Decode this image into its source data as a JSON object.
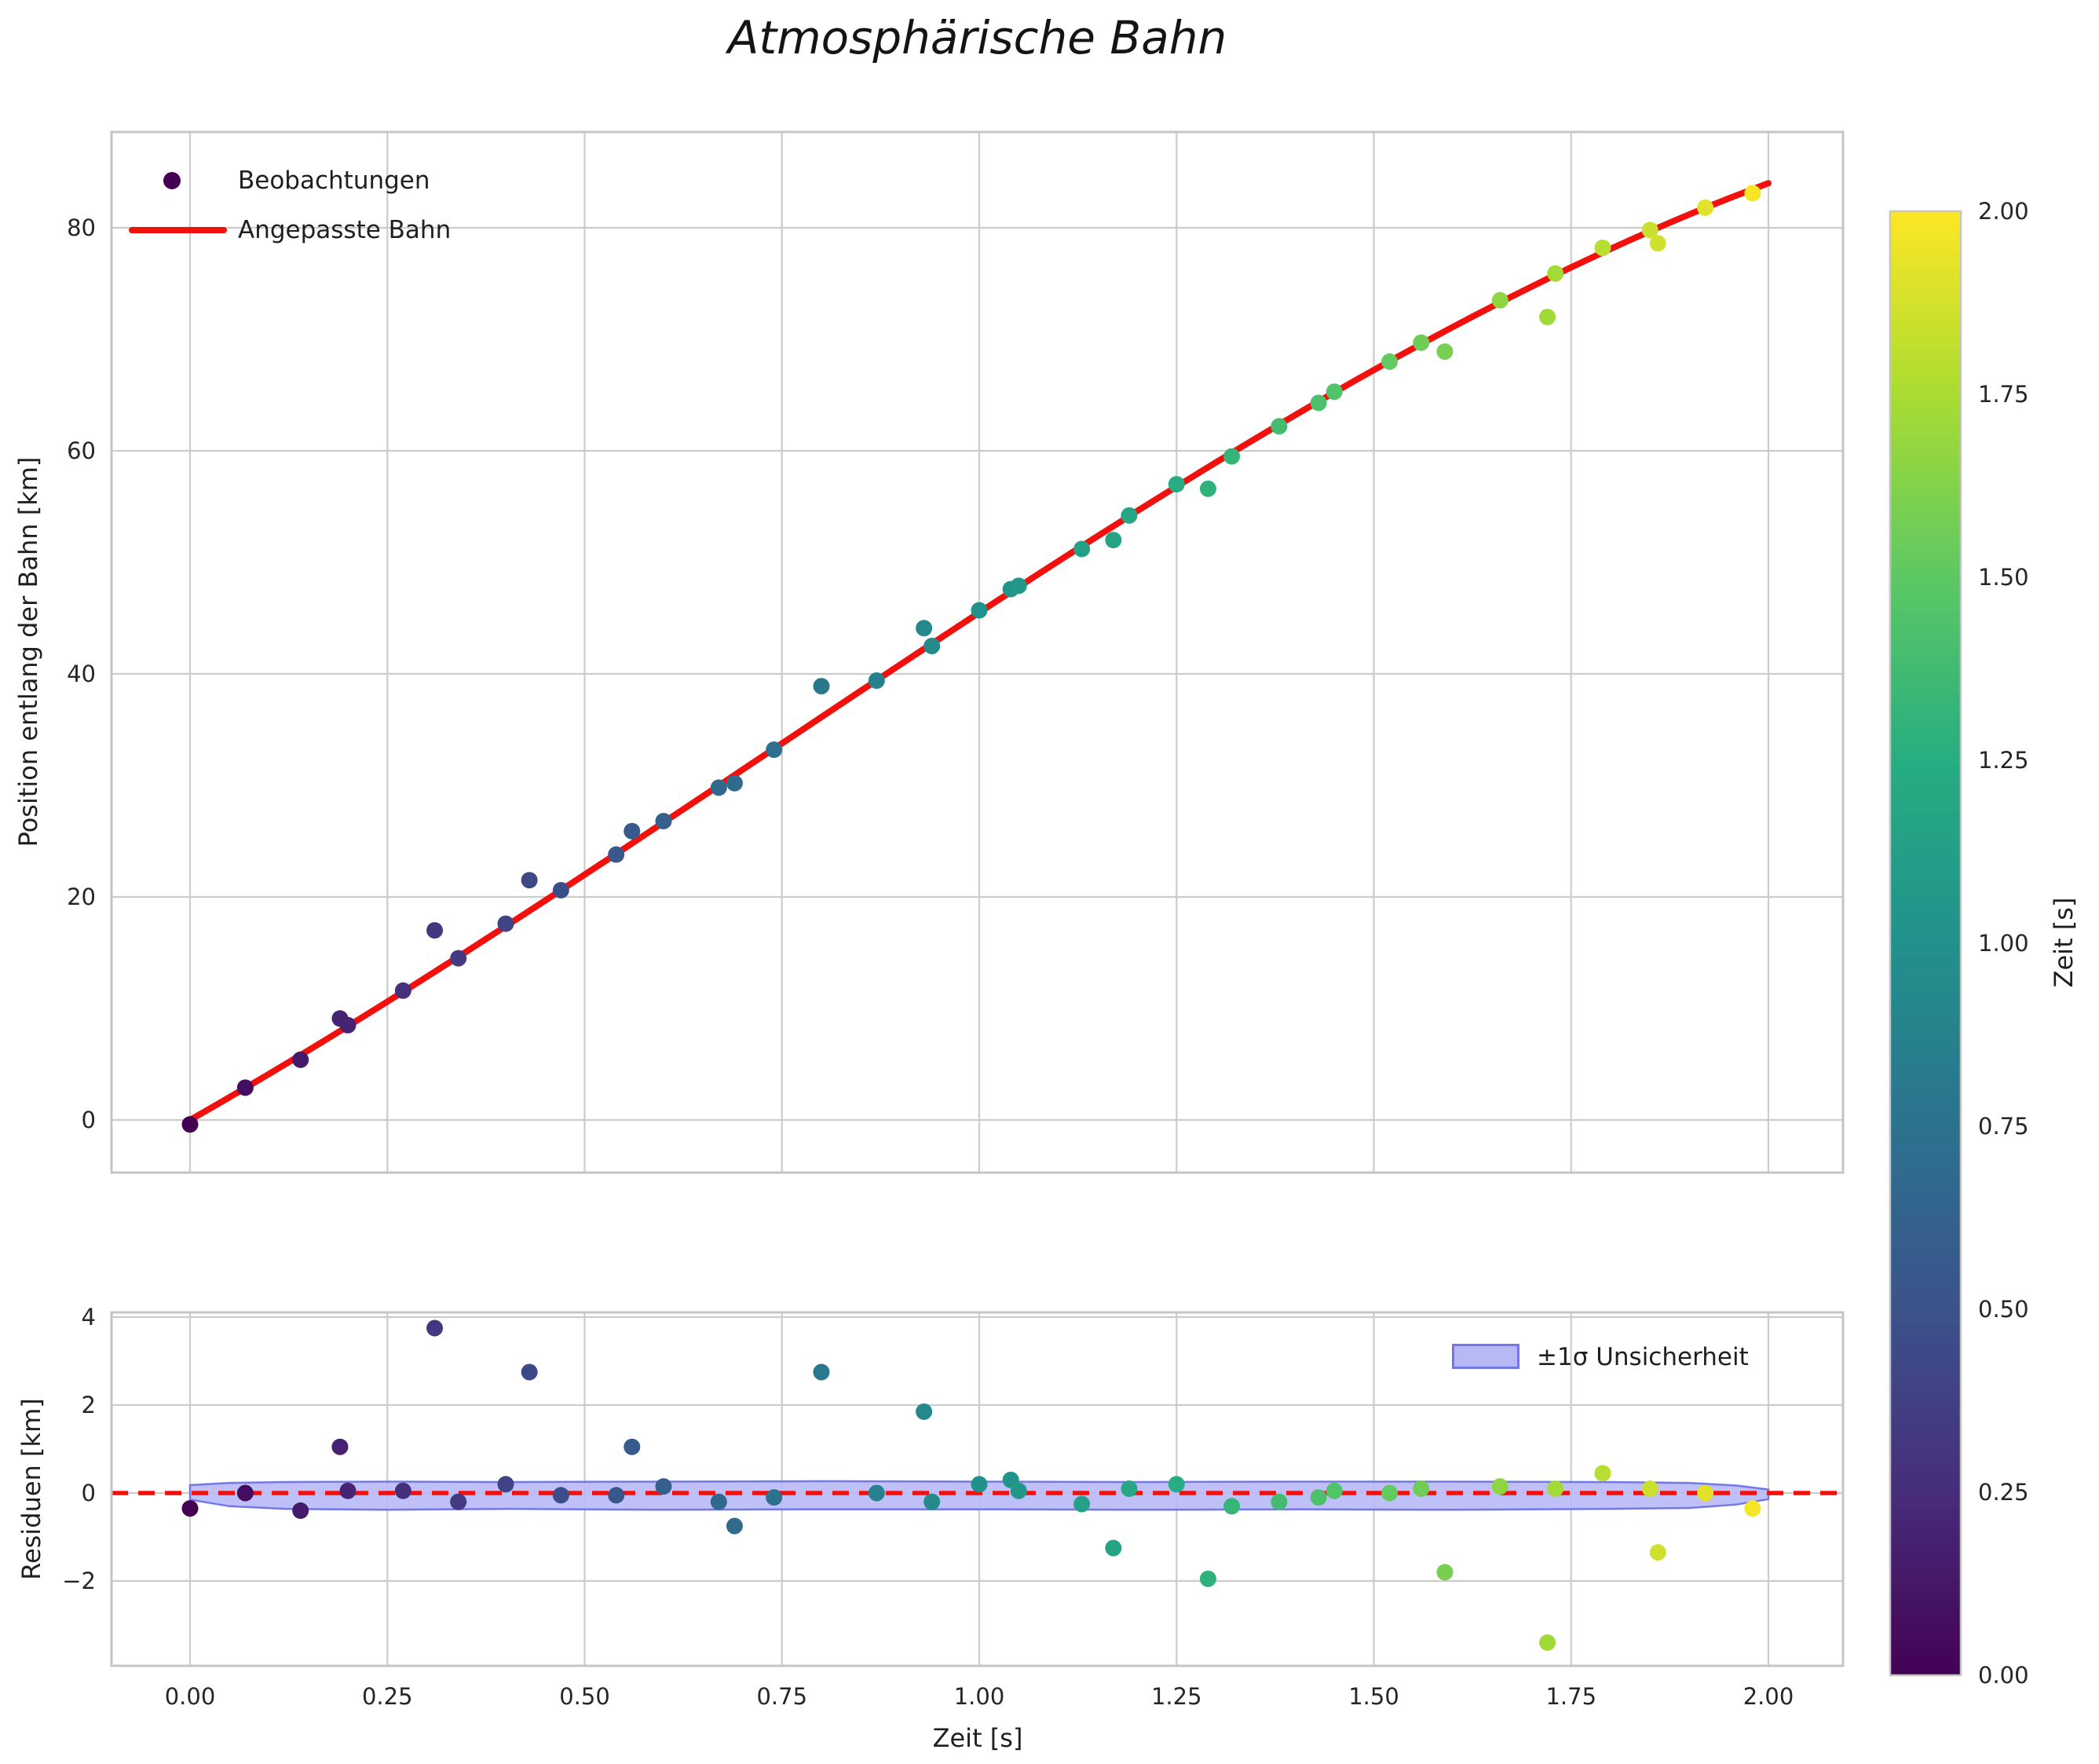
{
  "title": "Atmosphärische Bahn",
  "top_plot": {
    "ylabel": "Position entlang der Bahn [km]",
    "ytick_values": [
      0,
      20,
      40,
      60,
      80
    ],
    "ytick_labels": [
      "0",
      "20",
      "40",
      "60",
      "80"
    ],
    "ylim": [
      -4.7,
      88.6
    ],
    "legend": [
      {
        "label": "Beobachtungen",
        "marker": "dot",
        "color": "#440154"
      },
      {
        "label": "Angepasste Bahn",
        "marker": "line",
        "color": "#f2100d"
      }
    ]
  },
  "residual_plot": {
    "ylabel": "Residuen [km]",
    "xlabel": "Zeit [s]",
    "ytick_values": [
      4,
      2,
      0,
      -2
    ],
    "ytick_labels": [
      "4",
      "2",
      "0",
      "−2"
    ],
    "ylim": [
      -3.93,
      4.11
    ],
    "legend": {
      "label": "±1σ Unsicherheit",
      "fill": "#b7b9f6",
      "edge": "#7477ea"
    },
    "zero_line_color": "#f2100d"
  },
  "axes_x": {
    "xlim": [
      -0.0995,
      2.0945
    ],
    "xtick_values": [
      0,
      0.25,
      0.5,
      0.75,
      1.0,
      1.25,
      1.5,
      1.75,
      2.0
    ],
    "xtick_labels": [
      "0.00",
      "0.25",
      "0.50",
      "0.75",
      "1.00",
      "1.25",
      "1.50",
      "1.75",
      "2.00"
    ]
  },
  "colorbar": {
    "label": "Zeit [s]",
    "range": [
      0,
      2
    ],
    "tick_values": [
      0,
      0.25,
      0.5,
      0.75,
      1.0,
      1.25,
      1.5,
      1.75,
      2.0
    ],
    "tick_labels": [
      "0.00",
      "0.25",
      "0.50",
      "0.75",
      "1.00",
      "1.25",
      "1.50",
      "1.75",
      "2.00"
    ],
    "colormap": "viridis",
    "stops": [
      "#440154",
      "#472d7b",
      "#3b528b",
      "#2c728e",
      "#21918c",
      "#27ad81",
      "#5cc863",
      "#aadc32",
      "#fde725"
    ]
  },
  "chart_data": {
    "type": "scatter",
    "x_unit": "s",
    "y_unit": "km",
    "color_encoding": "Zeit [s] (viridis, 0.0 - 2.0)",
    "fit": {
      "name": "Angepasste Bahn",
      "model": "cubic",
      "coefficients": {
        "t1": 40.33,
        "t2": 9.5,
        "t3": -4.333
      },
      "t_range": [
        0,
        2
      ],
      "endpoints": [
        [
          0,
          0.0
        ],
        [
          2,
          84.0
        ]
      ],
      "color": "#f2100d",
      "linewidth": 8
    },
    "observations": [
      {
        "t": 0.0,
        "pos": -0.4,
        "res": -0.35
      },
      {
        "t": 0.07,
        "pos": 2.9,
        "res": 0.0
      },
      {
        "t": 0.14,
        "pos": 5.4,
        "res": -0.4
      },
      {
        "t": 0.19,
        "pos": 9.1,
        "res": 1.05
      },
      {
        "t": 0.2,
        "pos": 8.5,
        "res": 0.05
      },
      {
        "t": 0.27,
        "pos": 11.6,
        "res": 0.05
      },
      {
        "t": 0.31,
        "pos": 17.0,
        "res": 3.75
      },
      {
        "t": 0.34,
        "pos": 14.5,
        "res": -0.2
      },
      {
        "t": 0.4,
        "pos": 17.6,
        "res": 0.2
      },
      {
        "t": 0.43,
        "pos": 21.5,
        "res": 2.75
      },
      {
        "t": 0.47,
        "pos": 20.6,
        "res": -0.05
      },
      {
        "t": 0.54,
        "pos": 23.8,
        "res": -0.05
      },
      {
        "t": 0.56,
        "pos": 25.9,
        "res": 1.05
      },
      {
        "t": 0.6,
        "pos": 26.8,
        "res": 0.15
      },
      {
        "t": 0.67,
        "pos": 29.8,
        "res": -0.2
      },
      {
        "t": 0.69,
        "pos": 30.2,
        "res": -0.75
      },
      {
        "t": 0.74,
        "pos": 33.2,
        "res": -0.1
      },
      {
        "t": 0.8,
        "pos": 38.9,
        "res": 2.75
      },
      {
        "t": 0.87,
        "pos": 39.4,
        "res": 0.0
      },
      {
        "t": 0.93,
        "pos": 44.1,
        "res": 1.85
      },
      {
        "t": 0.94,
        "pos": 42.5,
        "res": -0.2
      },
      {
        "t": 1.0,
        "pos": 45.7,
        "res": 0.2
      },
      {
        "t": 1.04,
        "pos": 47.6,
        "res": 0.3
      },
      {
        "t": 1.05,
        "pos": 47.9,
        "res": 0.05
      },
      {
        "t": 1.13,
        "pos": 51.2,
        "res": -0.25
      },
      {
        "t": 1.17,
        "pos": 52.0,
        "res": -1.25
      },
      {
        "t": 1.19,
        "pos": 54.2,
        "res": 0.1
      },
      {
        "t": 1.25,
        "pos": 57.0,
        "res": 0.2
      },
      {
        "t": 1.29,
        "pos": 56.6,
        "res": -1.95
      },
      {
        "t": 1.32,
        "pos": 59.5,
        "res": -0.3
      },
      {
        "t": 1.38,
        "pos": 62.2,
        "res": -0.2
      },
      {
        "t": 1.43,
        "pos": 64.3,
        "res": -0.1
      },
      {
        "t": 1.45,
        "pos": 65.3,
        "res": 0.05
      },
      {
        "t": 1.52,
        "pos": 68.0,
        "res": 0.0
      },
      {
        "t": 1.56,
        "pos": 69.7,
        "res": 0.1
      },
      {
        "t": 1.59,
        "pos": 68.9,
        "res": -1.8
      },
      {
        "t": 1.66,
        "pos": 73.5,
        "res": 0.15
      },
      {
        "t": 1.72,
        "pos": 72.0,
        "res": -3.4
      },
      {
        "t": 1.73,
        "pos": 75.9,
        "res": 0.1
      },
      {
        "t": 1.79,
        "pos": 78.2,
        "res": 0.45
      },
      {
        "t": 1.85,
        "pos": 79.8,
        "res": 0.1
      },
      {
        "t": 1.86,
        "pos": 78.6,
        "res": -1.35
      },
      {
        "t": 1.92,
        "pos": 81.8,
        "res": 0.0
      },
      {
        "t": 1.98,
        "pos": 83.1,
        "res": -0.35
      }
    ],
    "uncertainty_band": {
      "label": "±1σ Unsicherheit",
      "fill": "#b7b9f6",
      "edge": "#7477ea",
      "profile": [
        {
          "t": 0.0,
          "lo": -0.15,
          "hi": 0.18
        },
        {
          "t": 0.05,
          "lo": -0.3,
          "hi": 0.23
        },
        {
          "t": 0.12,
          "lo": -0.36,
          "hi": 0.25
        },
        {
          "t": 0.25,
          "lo": -0.38,
          "hi": 0.26
        },
        {
          "t": 0.4,
          "lo": -0.36,
          "hi": 0.25
        },
        {
          "t": 0.6,
          "lo": -0.38,
          "hi": 0.26
        },
        {
          "t": 0.8,
          "lo": -0.37,
          "hi": 0.27
        },
        {
          "t": 1.0,
          "lo": -0.37,
          "hi": 0.26
        },
        {
          "t": 1.2,
          "lo": -0.38,
          "hi": 0.25
        },
        {
          "t": 1.4,
          "lo": -0.37,
          "hi": 0.26
        },
        {
          "t": 1.6,
          "lo": -0.38,
          "hi": 0.26
        },
        {
          "t": 1.8,
          "lo": -0.36,
          "hi": 0.25
        },
        {
          "t": 1.9,
          "lo": -0.34,
          "hi": 0.23
        },
        {
          "t": 1.96,
          "lo": -0.26,
          "hi": 0.17
        },
        {
          "t": 2.0,
          "lo": -0.14,
          "hi": 0.08
        }
      ]
    },
    "grid": true,
    "grid_color": "#cccccc",
    "spine_color": "#c5c5c5",
    "background": "#ffffff"
  }
}
